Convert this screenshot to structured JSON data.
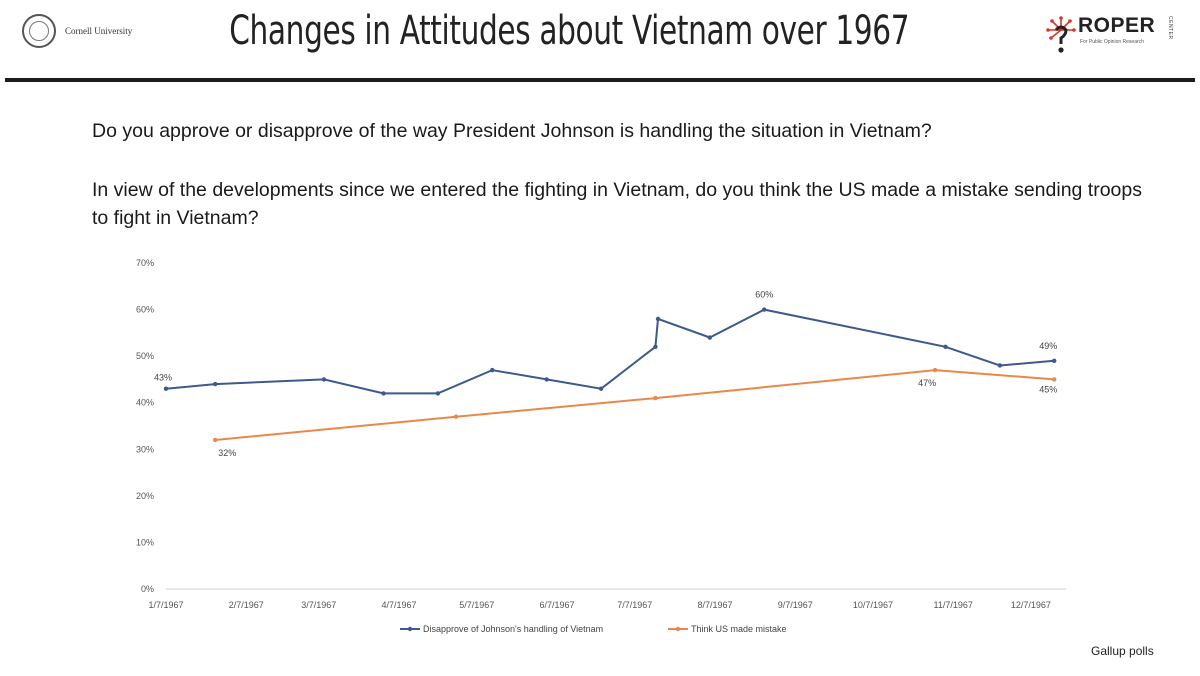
{
  "header": {
    "title": "Changes in Attitudes about Vietnam over 1967",
    "left_logo_text": "Cornell University",
    "right_logo_text": "ROPER",
    "right_logo_sub": "For Public Opinion Research",
    "right_logo_vertical": "CENTER"
  },
  "questions": {
    "q1": "Do you approve or disapprove of the way President Johnson is handling the situation in Vietnam?",
    "q2": "In view of the developments since we entered the fighting in Vietnam, do you think the US made a mistake sending troops to fight in Vietnam?"
  },
  "source": "Gallup polls",
  "chart_data": {
    "type": "line",
    "title": "",
    "xlabel": "",
    "ylabel": "",
    "x_range": [
      "1967-01-07",
      "1967-12-19"
    ],
    "ylim": [
      0,
      70
    ],
    "y_ticks": [
      0,
      10,
      20,
      30,
      40,
      50,
      60,
      70
    ],
    "y_tick_labels": [
      "0%",
      "10%",
      "20%",
      "30%",
      "40%",
      "50%",
      "60%",
      "70%"
    ],
    "x_ticks": [
      "1967-01-07",
      "1967-02-07",
      "1967-03-07",
      "1967-04-07",
      "1967-05-07",
      "1967-06-07",
      "1967-07-07",
      "1967-08-07",
      "1967-09-07",
      "1967-10-07",
      "1967-11-07",
      "1967-12-07"
    ],
    "x_tick_labels": [
      "1/7/1967",
      "2/7/1967",
      "3/7/1967",
      "4/7/1967",
      "5/7/1967",
      "6/7/1967",
      "7/7/1967",
      "8/7/1967",
      "9/7/1967",
      "10/7/1967",
      "11/7/1967",
      "12/7/1967"
    ],
    "grid": false,
    "legend_position": "bottom",
    "series": [
      {
        "name": "Disapprove of Johnson's handling of Vietnam",
        "color": "#3d5a8c",
        "points": [
          {
            "x": "1967-01-07",
            "y": 43,
            "label": "43%"
          },
          {
            "x": "1967-01-26",
            "y": 44
          },
          {
            "x": "1967-03-09",
            "y": 45
          },
          {
            "x": "1967-04-01",
            "y": 42
          },
          {
            "x": "1967-04-22",
            "y": 42
          },
          {
            "x": "1967-05-13",
            "y": 47
          },
          {
            "x": "1967-06-03",
            "y": 45
          },
          {
            "x": "1967-06-24",
            "y": 43
          },
          {
            "x": "1967-07-15",
            "y": 52
          },
          {
            "x": "1967-07-16",
            "y": 58
          },
          {
            "x": "1967-08-05",
            "y": 54
          },
          {
            "x": "1967-08-26",
            "y": 60,
            "label": "60%"
          },
          {
            "x": "1967-11-04",
            "y": 52
          },
          {
            "x": "1967-11-25",
            "y": 48
          },
          {
            "x": "1967-12-16",
            "y": 49,
            "label": "49%"
          }
        ]
      },
      {
        "name": "Think US made mistake",
        "color": "#e8884a",
        "points": [
          {
            "x": "1967-01-26",
            "y": 32,
            "label": "32%"
          },
          {
            "x": "1967-04-29",
            "y": 37
          },
          {
            "x": "1967-07-15",
            "y": 41
          },
          {
            "x": "1967-10-31",
            "y": 47,
            "label": "47%"
          },
          {
            "x": "1967-12-16",
            "y": 45,
            "label": "45%"
          }
        ]
      }
    ]
  }
}
